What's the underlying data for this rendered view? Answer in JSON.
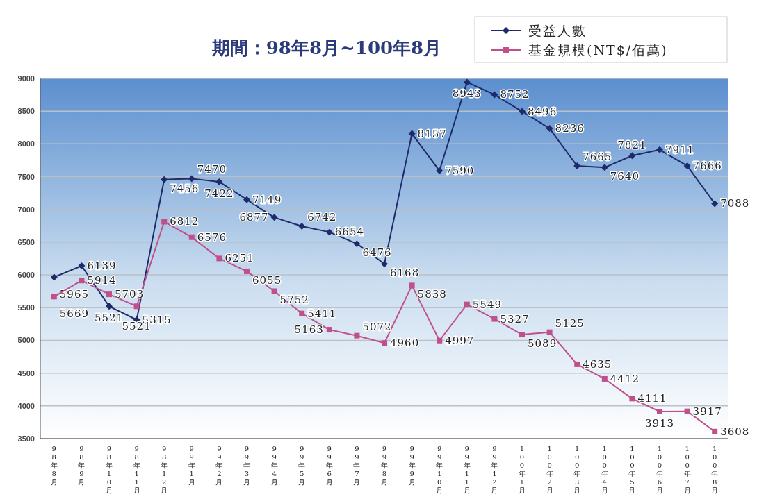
{
  "chart_data": {
    "type": "line",
    "title": "期間：98年8月~100年8月",
    "categories": [
      "98年8月",
      "98年9月",
      "98年10月",
      "98年11月",
      "98年12月",
      "99年1月",
      "99年2月",
      "99年3月",
      "99年4月",
      "99年5月",
      "99年6月",
      "99年7月",
      "99年8月",
      "99年9月",
      "99年10月",
      "99年11月",
      "99年12月",
      "100年1月",
      "100年2月",
      "100年3月",
      "100年4月",
      "100年5月",
      "100年6月",
      "100年7月",
      "100年8月"
    ],
    "series": [
      {
        "name": "受益人數",
        "color": "#1f2a6b",
        "marker": "diamond",
        "values": [
          5965,
          6139,
          5521,
          5315,
          7456,
          7470,
          7422,
          7149,
          6877,
          6742,
          6654,
          6476,
          6168,
          8157,
          7590,
          8943,
          8752,
          8496,
          8236,
          7665,
          7640,
          7821,
          7911,
          7666,
          7088
        ]
      },
      {
        "name": "基金規模(NT$/佰萬)",
        "color": "#c0508a",
        "marker": "square",
        "values": [
          5669,
          5914,
          5703,
          5521,
          6812,
          6576,
          6251,
          6055,
          5752,
          5411,
          5163,
          5072,
          4960,
          5838,
          4997,
          5549,
          5327,
          5089,
          5125,
          4635,
          4412,
          4111,
          3913,
          3917,
          3608
        ]
      }
    ],
    "ylim": [
      3500,
      9000
    ],
    "yticks": [
      3500,
      4000,
      4500,
      5000,
      5500,
      6000,
      6500,
      7000,
      7500,
      8000,
      8500,
      9000
    ],
    "grid": "y",
    "legend": "top right",
    "data_labels": true
  }
}
